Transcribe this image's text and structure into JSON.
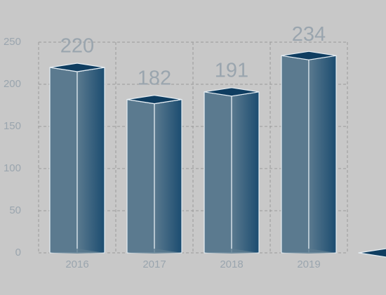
{
  "chart_data": {
    "type": "bar3d",
    "categories": [
      "2016",
      "2017",
      "2018",
      "2019",
      null
    ],
    "values": [
      220,
      182,
      191,
      234,
      0
    ],
    "ylim": [
      0,
      250
    ],
    "yticks": [
      0,
      50,
      100,
      150,
      200,
      250
    ],
    "grid": true,
    "color": "#5b7a8f",
    "side_color": "#1b4c70",
    "top_color": "#0f3d60"
  }
}
